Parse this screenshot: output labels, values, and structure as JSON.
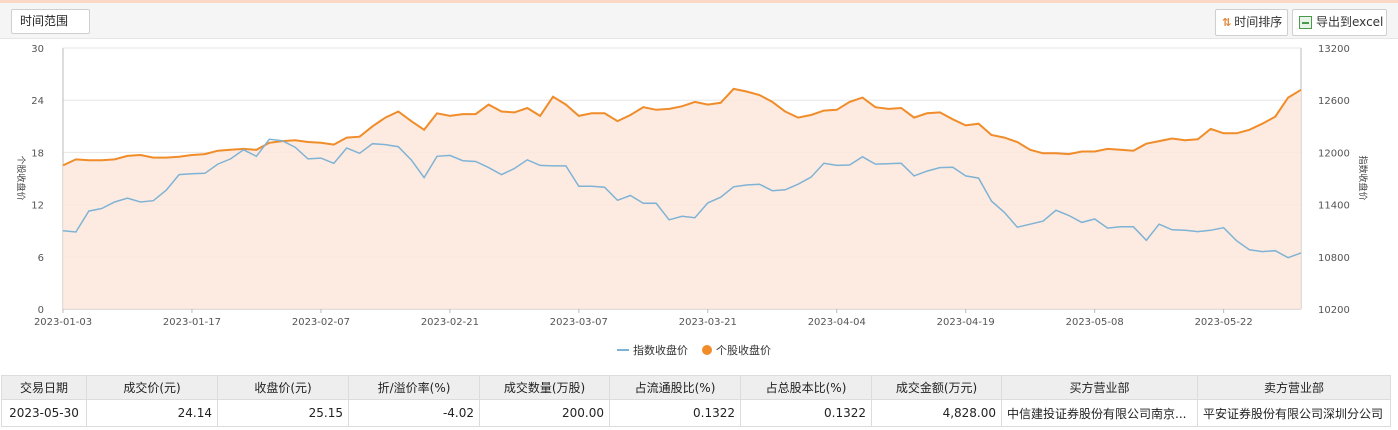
{
  "toolbar": {
    "range_label": "时间范围",
    "sort_label": "时间排序",
    "export_label": "导出到excel"
  },
  "colors": {
    "index_line": "#7fb3d5",
    "stock_line": "#f08c2a",
    "stock_area": "#fde8dc",
    "grid": "#e6e6e6"
  },
  "chart_data": {
    "type": "line",
    "title": "",
    "x_labels": [
      "2023-01-03",
      "2023-01-17",
      "2023-02-07",
      "2023-02-21",
      "2023-03-07",
      "2023-03-21",
      "2023-04-04",
      "2023-04-19",
      "2023-05-08",
      "2023-05-22"
    ],
    "x_label_positions": [
      0,
      10,
      20,
      30,
      40,
      50,
      60,
      70,
      80,
      90
    ],
    "left_axis": {
      "label": "个股收盘价",
      "min": 0,
      "max": 30,
      "ticks": [
        0,
        6,
        12,
        18,
        24,
        30
      ]
    },
    "right_axis": {
      "label": "指数收盘价",
      "min": 10200,
      "max": 13200,
      "ticks": [
        10200,
        10800,
        11400,
        12000,
        12600,
        13200
      ]
    },
    "grid": true,
    "legend_position": "bottom",
    "series": [
      {
        "name": "指数收盘价",
        "axis": "right",
        "values": [
          11100,
          11085,
          11325,
          11355,
          11430,
          11475,
          11430,
          11445,
          11565,
          11745,
          11755,
          11760,
          11865,
          11925,
          12030,
          11955,
          12150,
          12135,
          12060,
          11925,
          11935,
          11875,
          12050,
          11990,
          12100,
          12090,
          12065,
          11915,
          11710,
          11955,
          11965,
          11905,
          11895,
          11825,
          11745,
          11815,
          11915,
          11850,
          11845,
          11845,
          11610,
          11610,
          11600,
          11450,
          11505,
          11415,
          11415,
          11225,
          11265,
          11250,
          11420,
          11485,
          11605,
          11625,
          11635,
          11560,
          11570,
          11635,
          11715,
          11875,
          11850,
          11855,
          11950,
          11865,
          11870,
          11875,
          11730,
          11785,
          11825,
          11830,
          11730,
          11705,
          11440,
          11310,
          11140,
          11175,
          11210,
          11335,
          11275,
          11195,
          11235,
          11130,
          11145,
          11145,
          10990,
          11175,
          11110,
          11105,
          11090,
          11105,
          11135,
          10985,
          10880,
          10860,
          10870,
          10790,
          10845
        ]
      },
      {
        "name": "个股收盘价",
        "axis": "left",
        "values": [
          16.5,
          17.2,
          17.1,
          17.1,
          17.2,
          17.6,
          17.7,
          17.4,
          17.4,
          17.5,
          17.7,
          17.8,
          18.2,
          18.3,
          18.4,
          18.3,
          19.1,
          19.3,
          19.4,
          19.2,
          19.1,
          18.9,
          19.7,
          19.8,
          21.0,
          22.0,
          22.7,
          21.6,
          20.6,
          22.5,
          22.2,
          22.4,
          22.4,
          23.5,
          22.7,
          22.6,
          23.1,
          22.2,
          24.4,
          23.5,
          22.2,
          22.5,
          22.5,
          21.6,
          22.3,
          23.2,
          22.9,
          23.0,
          23.3,
          23.8,
          23.5,
          23.7,
          25.3,
          25.0,
          24.6,
          23.8,
          22.7,
          22.0,
          22.3,
          22.8,
          22.9,
          23.8,
          24.3,
          23.2,
          23.0,
          23.1,
          22.0,
          22.5,
          22.6,
          21.8,
          21.1,
          21.3,
          20.0,
          19.7,
          19.2,
          18.3,
          17.9,
          17.9,
          17.8,
          18.1,
          18.1,
          18.4,
          18.3,
          18.2,
          19.0,
          19.3,
          19.6,
          19.4,
          19.5,
          20.7,
          20.2,
          20.2,
          20.6,
          21.3,
          22.1,
          24.3,
          25.2
        ]
      }
    ]
  },
  "table": {
    "headers": [
      "交易日期",
      "成交价(元)",
      "收盘价(元)",
      "折/溢价率(%)",
      "成交数量(万股)",
      "占流通股比(%)",
      "占总股本比(%)",
      "成交金额(万元)",
      "买方营业部",
      "卖方营业部"
    ],
    "rows": [
      [
        "2023-05-30",
        "24.14",
        "25.15",
        "-4.02",
        "200.00",
        "0.1322",
        "0.1322",
        "4,828.00",
        "中信建投证券股份有限公司南京...",
        "平安证券股份有限公司深圳分公司"
      ]
    ]
  }
}
